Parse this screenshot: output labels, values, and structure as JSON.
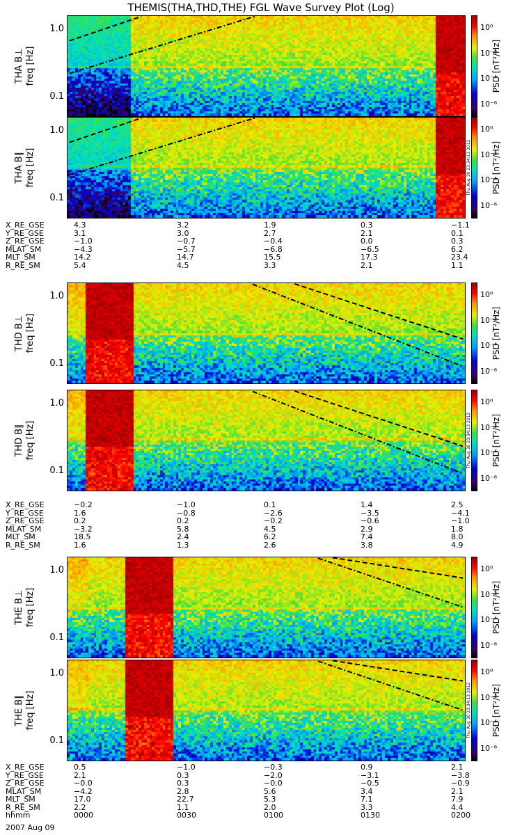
{
  "title": "THEMIS(THA,THD,THE) FGL Wave Survey Plot (Log)",
  "colorbar": {
    "label": "PSD [nT²/Hz]",
    "ticks": [
      "10⁰",
      "10⁻²",
      "10⁻⁴",
      "10⁻⁶"
    ],
    "range_log10": [
      -7,
      1
    ],
    "colors": [
      "#000000",
      "#3a006a",
      "#0000d0",
      "#00a0ff",
      "#00e0c0",
      "#40e040",
      "#e8f000",
      "#ff9000",
      "#ff0000",
      "#a00000"
    ]
  },
  "timestamp": "Thu Aug 30 23:34:13 2012",
  "date_label": "2007 Aug 09",
  "time_ticks": [
    "0000",
    "0030",
    "0100",
    "0130",
    "0200"
  ],
  "freq_ticks": [
    "1.0",
    "0.1"
  ],
  "ephem_names": [
    "X_RE_GSE",
    "Y_RE_GSE",
    "Z_RE_GSE",
    "MLAT_SM",
    "MLT_SM",
    "R_RE_SM"
  ],
  "time_row_name": "hhmm",
  "probes": [
    {
      "id": "THA",
      "panels": [
        {
          "label": "THA B⊥",
          "axis_label": "freq [Hz]"
        },
        {
          "label": "THA B∥",
          "axis_label": "freq [Hz]"
        }
      ],
      "ephemeris": [
        [
          "4.3",
          "3.2",
          "1.9",
          "0.3",
          "−1.1"
        ],
        [
          "3.1",
          "3.0",
          "2.7",
          "2.1",
          "0.1"
        ],
        [
          "−1.0",
          "−0.7",
          "−0.4",
          "0.0",
          "0.3"
        ],
        [
          "−4.3",
          "−5.7",
          "−6.8",
          "−6.5",
          "6.2"
        ],
        [
          "14.2",
          "14.7",
          "15.5",
          "17.3",
          "23.4"
        ],
        [
          "5.4",
          "4.5",
          "3.3",
          "2.1",
          "1.1"
        ]
      ]
    },
    {
      "id": "THD",
      "panels": [
        {
          "label": "THD B⊥",
          "axis_label": "freq [Hz]"
        },
        {
          "label": "THD B∥",
          "axis_label": "freq [Hz]"
        }
      ],
      "ephemeris": [
        [
          "−0.2",
          "−1.0",
          "0.1",
          "1.4",
          "2.5"
        ],
        [
          "1.6",
          "−0.8",
          "−2.6",
          "−3.5",
          "−4.1"
        ],
        [
          "0.2",
          "0.2",
          "−0.2",
          "−0.6",
          "−1.0"
        ],
        [
          "−3.2",
          "5.8",
          "4.5",
          "2.9",
          "1.8"
        ],
        [
          "18.5",
          "2.4",
          "6.2",
          "7.4",
          "8.0"
        ],
        [
          "1.6",
          "1.3",
          "2.6",
          "3.8",
          "4.9"
        ]
      ]
    },
    {
      "id": "THE",
      "panels": [
        {
          "label": "THE B⊥",
          "axis_label": "freq [Hz]"
        },
        {
          "label": "THE B∥",
          "axis_label": "freq [Hz]"
        }
      ],
      "ephemeris": [
        [
          "0.5",
          "−1.0",
          "−0.3",
          "0.9",
          "2.1"
        ],
        [
          "2.1",
          "0.3",
          "−2.0",
          "−3.1",
          "−3.8"
        ],
        [
          "−0.0",
          "0.3",
          "−0.0",
          "−0.5",
          "−0.9"
        ],
        [
          "−4.2",
          "2.8",
          "5.6",
          "3.4",
          "2.1"
        ],
        [
          "17.0",
          "22.7",
          "5.3",
          "7.1",
          "7.9"
        ],
        [
          "2.2",
          "1.1",
          "2.0",
          "3.3",
          "4.4"
        ]
      ]
    }
  ],
  "chart_data": {
    "type": "heatmap",
    "title": "THEMIS(THA,THD,THE) FGL Wave Survey Plot (Log)",
    "x_axis": {
      "name": "hhmm",
      "ticks": [
        "0000",
        "0030",
        "0100",
        "0130",
        "0200"
      ],
      "range_minutes": [
        0,
        120
      ]
    },
    "y_axis": {
      "label": "freq [Hz]",
      "scale": "log",
      "range_hz": [
        0.05,
        1.6
      ],
      "ticks": [
        1.0,
        0.1
      ]
    },
    "z_axis": {
      "label": "PSD [nT²/Hz]",
      "scale": "log",
      "range": [
        1e-07,
        10
      ]
    },
    "note": "Spectrogram panels: B⊥ and B∥ for each of THA, THD, THE; saturated (dark red) intervals and dashed/dash-dot curves overlaid.",
    "saturated_intervals_minutes": {
      "THA": [
        [
          111,
          120
        ]
      ],
      "THD": [
        [
          5,
          20
        ]
      ],
      "THE": [
        [
          17,
          32
        ]
      ]
    }
  }
}
